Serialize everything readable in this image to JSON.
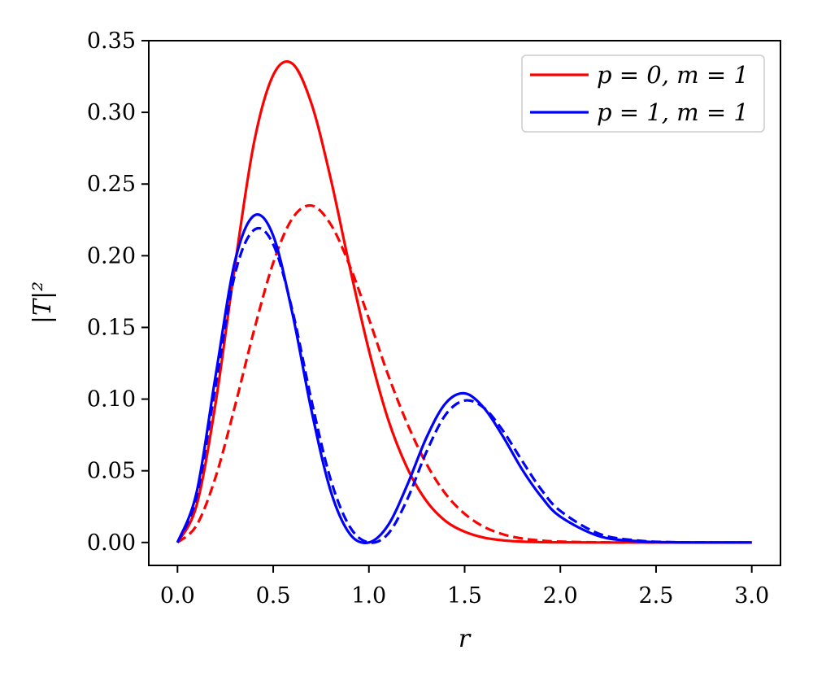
{
  "chart_data": {
    "type": "line",
    "title": "",
    "xlabel": "r",
    "ylabel": "|T|²",
    "xlim": [
      -0.15,
      3.15
    ],
    "ylim": [
      -0.016,
      0.35
    ],
    "xticks": [
      0.0,
      0.5,
      1.0,
      1.5,
      2.0,
      2.5,
      3.0
    ],
    "xtick_labels": [
      "0.0",
      "0.5",
      "1.0",
      "1.5",
      "2.0",
      "2.5",
      "3.0"
    ],
    "yticks": [
      0.0,
      0.05,
      0.1,
      0.15,
      0.2,
      0.25,
      0.3,
      0.35
    ],
    "ytick_labels": [
      "0.00",
      "0.05",
      "0.10",
      "0.15",
      "0.20",
      "0.25",
      "0.30",
      "0.35"
    ],
    "grid": false,
    "legend_position": "top-right",
    "x": [
      0.0,
      0.1,
      0.2,
      0.3,
      0.4,
      0.5,
      0.6,
      0.7,
      0.8,
      0.9,
      1.0,
      1.1,
      1.2,
      1.3,
      1.4,
      1.5,
      1.6,
      1.7,
      1.8,
      1.9,
      2.0,
      2.2,
      2.4,
      2.6,
      2.8,
      3.0
    ],
    "series": [
      {
        "name": "p = 0, m = 1",
        "color": "#ff0000",
        "style": "solid",
        "values": [
          0.0,
          0.026,
          0.098,
          0.193,
          0.279,
          0.326,
          0.334,
          0.306,
          0.254,
          0.192,
          0.134,
          0.086,
          0.052,
          0.029,
          0.015,
          0.0075,
          0.0034,
          0.0015,
          0.0006,
          0.0002,
          0.0001,
          0.0,
          0.0,
          0.0,
          0.0,
          0.0
        ]
      },
      {
        "name": "",
        "color": "#ff0000",
        "style": "dashed",
        "values": [
          0.0,
          0.012,
          0.046,
          0.095,
          0.148,
          0.195,
          0.226,
          0.235,
          0.222,
          0.193,
          0.156,
          0.117,
          0.083,
          0.055,
          0.034,
          0.02,
          0.011,
          0.0057,
          0.0028,
          0.0013,
          0.0006,
          0.0001,
          0.0,
          0.0,
          0.0,
          0.0
        ]
      },
      {
        "name": "p = 1, m = 1",
        "color": "#0000ff",
        "style": "solid",
        "values": [
          0.0,
          0.035,
          0.117,
          0.196,
          0.228,
          0.214,
          0.16,
          0.092,
          0.036,
          0.006,
          0.0,
          0.012,
          0.04,
          0.073,
          0.097,
          0.104,
          0.094,
          0.074,
          0.051,
          0.032,
          0.018,
          0.0045,
          0.0009,
          0.0001,
          0.0,
          0.0
        ]
      },
      {
        "name": "",
        "color": "#0000ff",
        "style": "dashed",
        "values": [
          0.0,
          0.032,
          0.11,
          0.187,
          0.218,
          0.208,
          0.162,
          0.099,
          0.044,
          0.011,
          0.0,
          0.006,
          0.03,
          0.063,
          0.089,
          0.099,
          0.094,
          0.078,
          0.057,
          0.037,
          0.022,
          0.0062,
          0.0014,
          0.0002,
          0.0,
          0.0
        ]
      }
    ]
  }
}
